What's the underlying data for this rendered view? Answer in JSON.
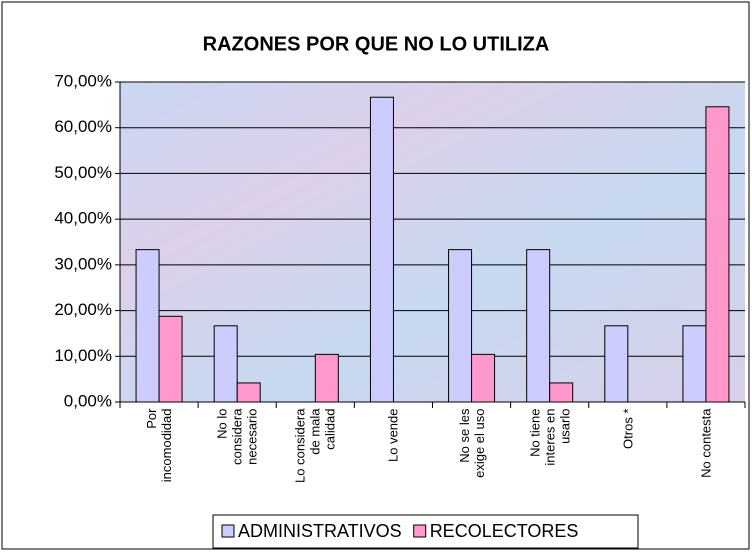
{
  "chart_data": {
    "type": "bar",
    "title": "RAZONES POR QUE NO LO UTILIZA",
    "categories": [
      "Por incomodidad",
      "No lo considera necesario",
      "Lo considera de mala calidad",
      "Lo vende",
      "No se les exige el uso",
      "No tiene interes en usarlo",
      "Otros *",
      "No contesta"
    ],
    "series": [
      {
        "name": "ADMINISTRATIVOS",
        "color": "#ccccff",
        "values": [
          33.33,
          16.67,
          0,
          66.67,
          33.33,
          33.33,
          16.67,
          16.67
        ]
      },
      {
        "name": "RECOLECTORES",
        "color": "#ff99cc",
        "values": [
          18.75,
          4.17,
          10.42,
          0,
          10.42,
          4.17,
          0,
          64.58
        ]
      }
    ],
    "ylim": [
      0,
      70
    ],
    "yticks": [
      {
        "value": 0,
        "label": "0,00%"
      },
      {
        "value": 10,
        "label": "10,00%"
      },
      {
        "value": 20,
        "label": "20,00%"
      },
      {
        "value": 30,
        "label": "30,00%"
      },
      {
        "value": 40,
        "label": "40,00%"
      },
      {
        "value": 50,
        "label": "50,00%"
      },
      {
        "value": 60,
        "label": "60,00%"
      },
      {
        "value": 70,
        "label": "70,00%"
      }
    ],
    "grid": true,
    "legend": "bottom"
  }
}
